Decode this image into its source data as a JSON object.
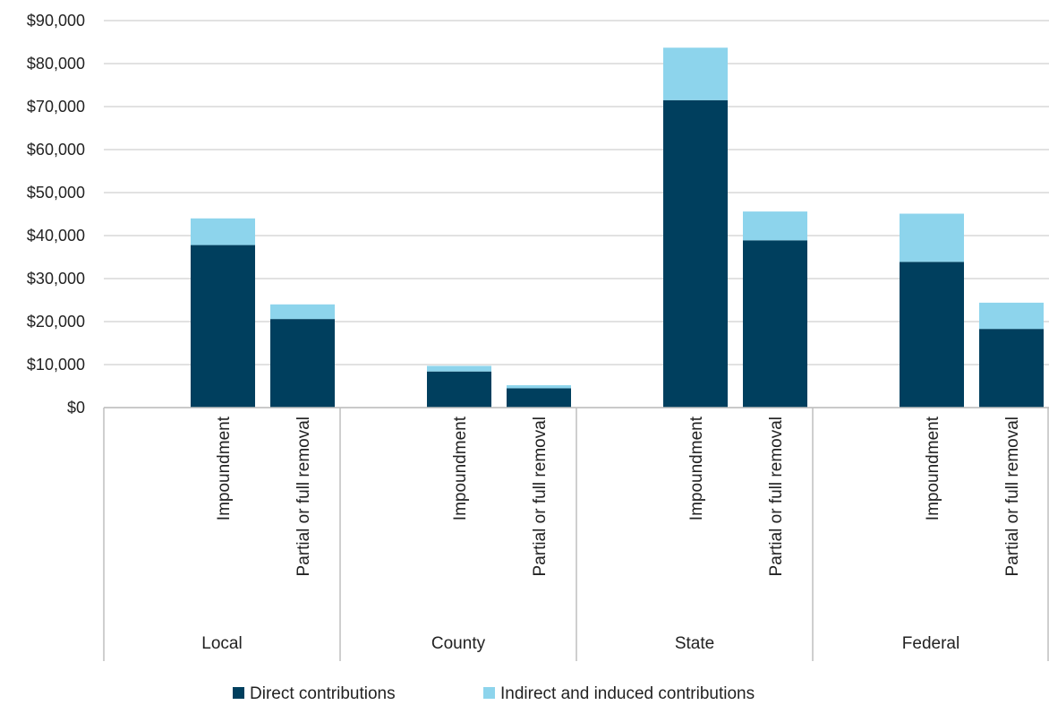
{
  "chart_data": {
    "type": "bar",
    "stacked": true,
    "groups": [
      "Local",
      "County",
      "State",
      "Federal"
    ],
    "categories": [
      "Impoundment",
      "Partial or full removal"
    ],
    "x": [
      {
        "group": "Local",
        "category": "Impoundment"
      },
      {
        "group": "Local",
        "category": "Partial or full removal"
      },
      {
        "group": "County",
        "category": "Impoundment"
      },
      {
        "group": "County",
        "category": "Partial or full removal"
      },
      {
        "group": "State",
        "category": "Impoundment"
      },
      {
        "group": "State",
        "category": "Partial or full removal"
      },
      {
        "group": "Federal",
        "category": "Impoundment"
      },
      {
        "group": "Federal",
        "category": "Partial or full removal"
      }
    ],
    "series": [
      {
        "name": "Direct contributions",
        "color": "#003f5e",
        "values": [
          37800,
          20600,
          8400,
          4500,
          71500,
          38900,
          33900,
          18300
        ]
      },
      {
        "name": "Indirect and induced contributions",
        "color": "#8dd4ec",
        "values": [
          6200,
          3400,
          1300,
          700,
          12200,
          6700,
          11200,
          6100
        ]
      }
    ],
    "yticks": [
      "$0",
      "$10,000",
      "$20,000",
      "$30,000",
      "$40,000",
      "$50,000",
      "$60,000",
      "$70,000",
      "$80,000",
      "$90,000"
    ],
    "ylim": [
      0,
      90000
    ],
    "grid": true,
    "legend": "bottom"
  }
}
